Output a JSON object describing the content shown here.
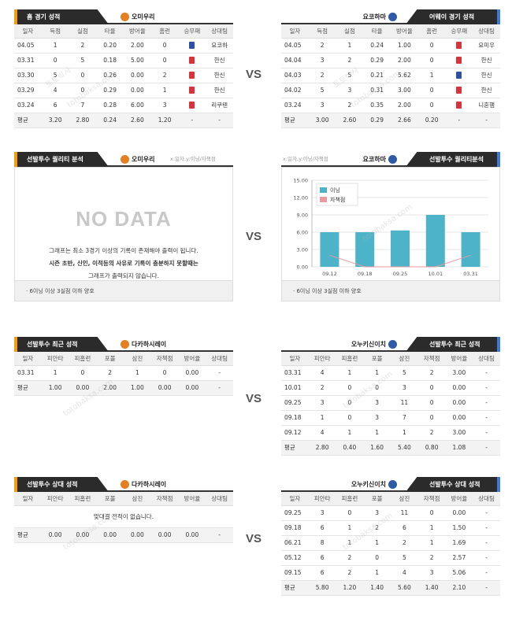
{
  "vs": "VS",
  "watermark": [
    "토토박사",
    "totobaksa.com"
  ],
  "home_recent": {
    "title": "홈 경기 성적",
    "team": "오미우리",
    "headers": [
      "일자",
      "득점",
      "실점",
      "타율",
      "방어율",
      "홈런",
      "승무패",
      "상대팀"
    ],
    "rows": [
      [
        "04.05",
        "1",
        "2",
        "0.20",
        "2.00",
        "0",
        "무",
        "요코하"
      ],
      [
        "03.31",
        "0",
        "5",
        "0.18",
        "5.00",
        "0",
        "패",
        "한신"
      ],
      [
        "03.30",
        "5",
        "0",
        "0.26",
        "0.00",
        "2",
        "승",
        "한신"
      ],
      [
        "03.29",
        "4",
        "0",
        "0.29",
        "0.00",
        "1",
        "승",
        "한신"
      ],
      [
        "03.24",
        "6",
        "7",
        "0.28",
        "6.00",
        "3",
        "승",
        "리쿠텐"
      ]
    ],
    "avg": [
      "평균",
      "3.20",
      "2.80",
      "0.24",
      "2.60",
      "1.20",
      "-",
      "-"
    ]
  },
  "away_recent": {
    "title": "어웨이 경기 성적",
    "team": "요코하마",
    "headers": [
      "일자",
      "득점",
      "실점",
      "타율",
      "방어율",
      "홈런",
      "승무패",
      "상대팀"
    ],
    "rows": [
      [
        "04.05",
        "2",
        "1",
        "0.24",
        "1.00",
        "0",
        "승",
        "요미우"
      ],
      [
        "04.04",
        "3",
        "2",
        "0.29",
        "2.00",
        "0",
        "승",
        "한신"
      ],
      [
        "04.03",
        "2",
        "5",
        "0.21",
        "5.62",
        "1",
        "무",
        "한신"
      ],
      [
        "04.02",
        "5",
        "3",
        "0.31",
        "3.00",
        "0",
        "승",
        "한신"
      ],
      [
        "03.24",
        "3",
        "2",
        "0.35",
        "2.00",
        "0",
        "승",
        "니혼햄"
      ]
    ],
    "avg": [
      "평균",
      "3.00",
      "2.60",
      "0.29",
      "2.66",
      "0.20",
      "-",
      "-"
    ]
  },
  "home_quality": {
    "title": "선발투수 퀄리티 분석",
    "team": "오미우리",
    "hint": "x:일자,y:이닝/자책점",
    "nodata": "NO DATA",
    "msg1": "그래프는 최소 3경기 이상의 기록이 존재해야 출력이 됩니다.",
    "msg2": "시즌 초반, 신인, 이적등의 사유로 기록이 충분하지 못할때는",
    "msg3": "그래프가 출력되지 않습니다.",
    "foot": "· 6이닝 이상 3실점 이하 양호"
  },
  "away_quality": {
    "title": "선발투수 퀄리티분석",
    "team": "요코하마",
    "hint": "x:일자,y:이닝/자책점",
    "foot": "· 6이닝 이상 3실점 이하 양호"
  },
  "chart_data": {
    "type": "bar",
    "categories": [
      "09.12",
      "09.18",
      "09.25",
      "10.01",
      "03.31"
    ],
    "series": [
      {
        "name": "이닝",
        "type": "bar",
        "values": [
          6.0,
          6.0,
          6.3,
          9.0,
          6.0
        ],
        "color": "#4db3c8"
      },
      {
        "name": "자책점",
        "type": "line",
        "values": [
          2.0,
          0.0,
          0.0,
          0.0,
          2.0
        ],
        "color": "#e89aa0"
      }
    ],
    "ylim": [
      0,
      15
    ],
    "yticks": [
      "15.00",
      "12.00",
      "9.00",
      "6.00",
      "3.00",
      "0.00"
    ],
    "legend": "top-left",
    "grid": true
  },
  "home_pitcher_recent": {
    "title": "선발투수 최근 성적",
    "team": "다카하시레이",
    "headers": [
      "일자",
      "피안타",
      "피홈런",
      "포볼",
      "삼진",
      "자책점",
      "방어율",
      "상대팀"
    ],
    "rows": [
      [
        "03.31",
        "1",
        "0",
        "2",
        "1",
        "0",
        "0.00",
        "-"
      ]
    ],
    "avg": [
      "평균",
      "1.00",
      "0.00",
      "2.00",
      "1.00",
      "0.00",
      "0.00",
      "-"
    ]
  },
  "away_pitcher_recent": {
    "title": "선발투수 최근 성적",
    "team": "오누키신이치",
    "headers": [
      "일자",
      "피안타",
      "피홈런",
      "포볼",
      "삼진",
      "자책점",
      "방어율",
      "상대팀"
    ],
    "rows": [
      [
        "03.31",
        "4",
        "1",
        "1",
        "5",
        "2",
        "3.00",
        "-"
      ],
      [
        "10.01",
        "2",
        "0",
        "0",
        "3",
        "0",
        "0.00",
        "-"
      ],
      [
        "09.25",
        "3",
        "0",
        "3",
        "11",
        "0",
        "0.00",
        "-"
      ],
      [
        "09.18",
        "1",
        "0",
        "3",
        "7",
        "0",
        "0.00",
        "-"
      ],
      [
        "09.12",
        "4",
        "1",
        "1",
        "1",
        "2",
        "3.00",
        "-"
      ]
    ],
    "avg": [
      "평균",
      "2.80",
      "0.40",
      "1.60",
      "5.40",
      "0.80",
      "1.08",
      "-"
    ]
  },
  "home_pitcher_vs": {
    "title": "선발투수 상대 성적",
    "team": "다카하시레이",
    "headers": [
      "일자",
      "피안타",
      "피홈런",
      "포볼",
      "삼진",
      "자책점",
      "방어율",
      "상대팀"
    ],
    "empty": "맞대결 전적이 없습니다.",
    "avg": [
      "평균",
      "0.00",
      "0.00",
      "0.00",
      "0.00",
      "0.00",
      "0.00",
      "-"
    ]
  },
  "away_pitcher_vs": {
    "title": "선발투수 상대 성적",
    "team": "오누키신이치",
    "headers": [
      "일자",
      "피안타",
      "피홈런",
      "포볼",
      "삼진",
      "자책점",
      "방어율",
      "상대팀"
    ],
    "rows": [
      [
        "09.25",
        "3",
        "0",
        "3",
        "11",
        "0",
        "0.00",
        "-"
      ],
      [
        "09.18",
        "6",
        "1",
        "2",
        "6",
        "1",
        "1.50",
        "-"
      ],
      [
        "06.21",
        "8",
        "1",
        "1",
        "2",
        "1",
        "1.69",
        "-"
      ],
      [
        "05.12",
        "6",
        "2",
        "0",
        "5",
        "2",
        "2.57",
        "-"
      ],
      [
        "09.15",
        "6",
        "2",
        "1",
        "4",
        "3",
        "5.06",
        "-"
      ]
    ],
    "avg": [
      "평균",
      "5.80",
      "1.20",
      "1.40",
      "5.60",
      "1.40",
      "2.10",
      "-"
    ]
  },
  "colors": {
    "win": "#d9323a",
    "draw": "#2d4fa8",
    "accent_home": "#f39c12",
    "accent_away": "#3a7bd5"
  }
}
